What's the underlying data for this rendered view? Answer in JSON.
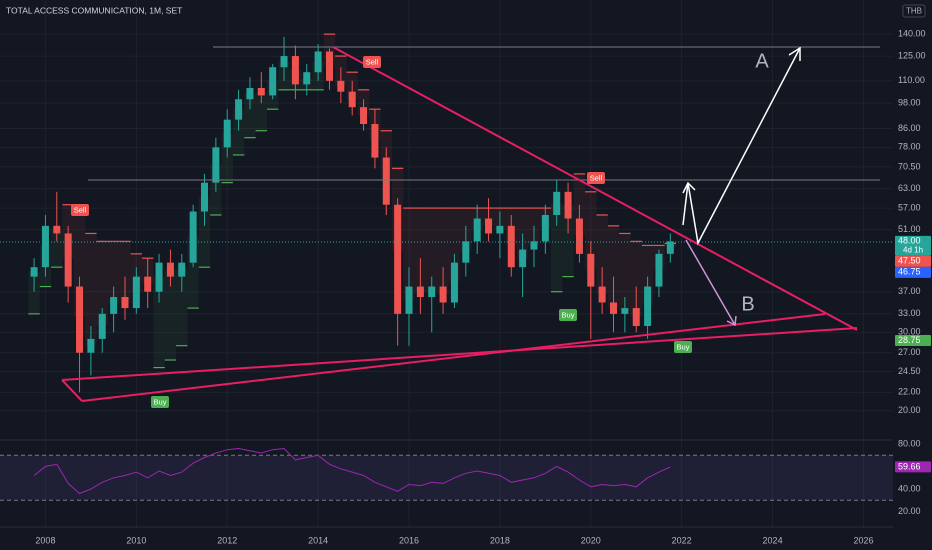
{
  "chart_data": {
    "type": "candlestick",
    "title": "TOTAL ACCESS COMMUNICATION, 1M, SET",
    "currency": "THB",
    "log_scale": true,
    "grid": true,
    "up_color": "#26a69a",
    "down_color": "#ef5350",
    "x": [
      2007.75,
      2008,
      2008.25,
      2008.5,
      2008.75,
      2009,
      2009.25,
      2009.5,
      2009.75,
      2010,
      2010.25,
      2010.5,
      2010.75,
      2011,
      2011.25,
      2011.5,
      2011.75,
      2012,
      2012.25,
      2012.5,
      2012.75,
      2013,
      2013.25,
      2013.5,
      2013.75,
      2014,
      2014.25,
      2014.5,
      2014.75,
      2015,
      2015.25,
      2015.5,
      2015.75,
      2016,
      2016.25,
      2016.5,
      2016.75,
      2017,
      2017.25,
      2017.5,
      2017.75,
      2018,
      2018.25,
      2018.5,
      2018.75,
      2019,
      2019.25,
      2019.5,
      2019.75,
      2020,
      2020.25,
      2020.5,
      2020.75,
      2021,
      2021.25,
      2021.5,
      2021.75
    ],
    "open": [
      40,
      42,
      52,
      50,
      38,
      27,
      29,
      33,
      36,
      34,
      40,
      37,
      43,
      40,
      43,
      56,
      65,
      78,
      90,
      100,
      106,
      102,
      118,
      125,
      108,
      115,
      128,
      110,
      104,
      96,
      88,
      74,
      58,
      33,
      38,
      36,
      38,
      35,
      43,
      48,
      54,
      50,
      52,
      42,
      46,
      48,
      55,
      62,
      54,
      45,
      38,
      35,
      33,
      34,
      31,
      38,
      45
    ],
    "high": [
      44,
      55,
      62,
      52,
      40,
      31,
      34,
      38,
      40,
      42,
      44,
      45,
      46,
      45,
      58,
      68,
      82,
      95,
      105,
      112,
      115,
      120,
      138,
      132,
      120,
      133,
      130,
      118,
      110,
      100,
      95,
      78,
      60,
      42,
      44,
      40,
      42,
      45,
      52,
      58,
      60,
      56,
      55,
      50,
      52,
      58,
      66,
      65,
      58,
      48,
      42,
      40,
      36,
      38,
      40,
      46,
      50
    ],
    "low": [
      37,
      40,
      48,
      35,
      22,
      24,
      27,
      30,
      32,
      33,
      34,
      35,
      38,
      37,
      42,
      52,
      62,
      74,
      85,
      95,
      98,
      100,
      110,
      100,
      102,
      110,
      105,
      98,
      92,
      85,
      70,
      55,
      28,
      28,
      33,
      30,
      33,
      34,
      40,
      45,
      48,
      44,
      40,
      36,
      42,
      45,
      52,
      50,
      43,
      29,
      33,
      30,
      30,
      30,
      29,
      36,
      43
    ],
    "close": [
      42,
      52,
      50,
      38,
      27,
      29,
      33,
      36,
      34,
      40,
      37,
      43,
      40,
      43,
      56,
      65,
      78,
      90,
      100,
      106,
      102,
      118,
      125,
      108,
      115,
      128,
      110,
      104,
      96,
      88,
      74,
      58,
      33,
      38,
      36,
      38,
      35,
      43,
      48,
      54,
      50,
      52,
      42,
      46,
      48,
      55,
      62,
      54,
      45,
      38,
      35,
      33,
      34,
      31,
      38,
      45,
      48
    ],
    "supertrend": [
      33,
      38,
      42,
      58,
      55,
      50,
      48,
      48,
      48,
      45,
      44,
      25,
      26,
      28,
      34,
      42,
      55,
      65,
      75,
      82,
      85,
      95,
      105,
      105,
      105,
      105,
      140,
      125,
      115,
      105,
      95,
      85,
      70,
      57,
      57,
      57,
      57,
      57,
      57,
      57,
      57,
      57,
      57,
      57,
      57,
      57,
      37,
      40,
      68,
      62,
      55,
      52,
      50,
      48,
      47,
      47,
      47.5
    ],
    "xlim": [
      2007,
      2026.65
    ],
    "ylim": [
      17.2,
      167
    ],
    "xticks": [
      2008,
      2010,
      2012,
      2014,
      2016,
      2018,
      2020,
      2022,
      2024,
      2026
    ],
    "yticks": [
      {
        "value": 140,
        "label": "140.00"
      },
      {
        "value": 125,
        "label": "125.00"
      },
      {
        "value": 110,
        "label": "110.00"
      },
      {
        "value": 98,
        "label": "98.00"
      },
      {
        "value": 86,
        "label": "86.00"
      },
      {
        "value": 78,
        "label": "78.00"
      },
      {
        "value": 70.5,
        "label": "70.50"
      },
      {
        "value": 63,
        "label": "63.00"
      },
      {
        "value": 57,
        "label": "57.00"
      },
      {
        "value": 51,
        "label": "51.00"
      },
      {
        "value": 37,
        "label": "37.00"
      },
      {
        "value": 33,
        "label": "33.00"
      },
      {
        "value": 30,
        "label": "30.00"
      },
      {
        "value": 27,
        "label": "27.00"
      },
      {
        "value": 24.5,
        "label": "24.50"
      },
      {
        "value": 22,
        "label": "22.00"
      },
      {
        "value": 20,
        "label": "20.00"
      }
    ],
    "tags": [
      {
        "value": 48,
        "label": "48.00",
        "color": "#26a69a"
      },
      {
        "value": 47.5,
        "label": "47.50",
        "color": "#ef5350"
      },
      {
        "value": 46.75,
        "label": "46.75",
        "color": "#2962ff"
      },
      {
        "value": 28.75,
        "label": "28.75",
        "color": "#4caf50"
      }
    ],
    "countdown": "4d 1h",
    "signals": [
      "Sell",
      "Buy",
      "Sell",
      "Buy",
      "Sell",
      "Buy"
    ],
    "annotations": [
      "A",
      "B"
    ],
    "rsi": {
      "values": [
        52,
        60,
        62,
        45,
        36,
        40,
        46,
        50,
        52,
        55,
        50,
        56,
        52,
        55,
        63,
        68,
        72,
        75,
        76,
        74,
        72,
        75,
        76,
        66,
        68,
        70,
        62,
        58,
        55,
        52,
        46,
        42,
        38,
        44,
        43,
        46,
        45,
        50,
        54,
        56,
        54,
        52,
        46,
        48,
        50,
        54,
        60,
        55,
        48,
        42,
        44,
        43,
        44,
        42,
        50,
        55,
        59.66
      ],
      "color": "#9c27b0",
      "ylim": [
        6.2,
        83.6
      ],
      "bands": [
        30,
        70
      ],
      "yticks": [
        {
          "value": 80,
          "label": "80.00"
        },
        {
          "value": 40,
          "label": "40.00"
        },
        {
          "value": 20,
          "label": "20.00"
        }
      ],
      "tag": {
        "value": 59.66,
        "label": "59.66"
      }
    }
  }
}
